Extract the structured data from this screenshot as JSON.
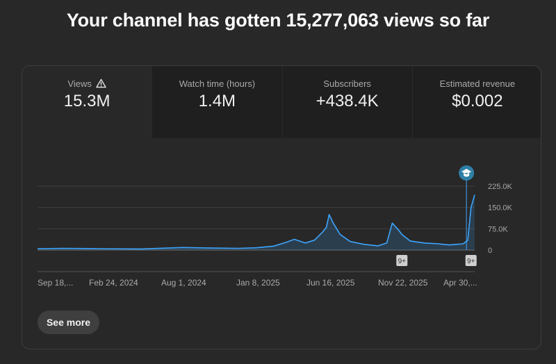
{
  "headline": "Your channel has gotten 15,277,063 views so far",
  "tabs": [
    {
      "label": "Views",
      "value": "15.3M",
      "active": true,
      "warning_icon": "warning-triangle-icon"
    },
    {
      "label": "Watch time (hours)",
      "value": "1.4M"
    },
    {
      "label": "Subscribers",
      "value": "+438.4K"
    },
    {
      "label": "Estimated revenue",
      "value": "$0.002"
    }
  ],
  "chart_data": {
    "type": "area",
    "series_color": "#3ea6ff",
    "y_ticks": [
      {
        "value": 0,
        "label": "0"
      },
      {
        "value": 75000,
        "label": "75.0K"
      },
      {
        "value": 150000,
        "label": "150.0K"
      },
      {
        "value": 225000,
        "label": "225.0K"
      }
    ],
    "ylim": [
      0,
      225000
    ],
    "x_tick_labels": [
      "Sep 18,...",
      "Feb 24, 2024",
      "Aug 1, 2024",
      "Jan 8, 2025",
      "Jun 16, 2025",
      "Nov 22, 2025",
      "Apr 30,..."
    ],
    "x_range": [
      "2023-09-18",
      "2026-04-30"
    ],
    "x": [
      "2023-09-18",
      "2023-11-15",
      "2024-02-01",
      "2024-05-01",
      "2024-08-01",
      "2024-10-01",
      "2024-12-01",
      "2025-01-08",
      "2025-02-15",
      "2025-03-15",
      "2025-04-01",
      "2025-04-25",
      "2025-05-15",
      "2025-06-01",
      "2025-06-10",
      "2025-06-16",
      "2025-06-25",
      "2025-07-10",
      "2025-08-01",
      "2025-09-01",
      "2025-10-01",
      "2025-10-20",
      "2025-11-01",
      "2025-11-15",
      "2025-11-22",
      "2025-12-10",
      "2026-01-10",
      "2026-02-10",
      "2026-03-05",
      "2026-03-20",
      "2026-04-05",
      "2026-04-15",
      "2026-04-22",
      "2026-04-30"
    ],
    "y": [
      5000,
      6000,
      5000,
      4000,
      9000,
      7000,
      6000,
      8000,
      14000,
      28000,
      38000,
      25000,
      35000,
      62000,
      80000,
      125000,
      95000,
      55000,
      30000,
      20000,
      15000,
      25000,
      95000,
      70000,
      55000,
      32000,
      25000,
      22000,
      18000,
      20000,
      22000,
      35000,
      150000,
      195000
    ],
    "markers": [
      {
        "label": "9+",
        "x": "2025-11-22"
      },
      {
        "label": "9+",
        "x": "2026-04-22"
      }
    ],
    "milestone": {
      "x": "2026-04-12",
      "icon": "graduation-cap-icon"
    },
    "grid": true
  },
  "see_more_label": "See more"
}
